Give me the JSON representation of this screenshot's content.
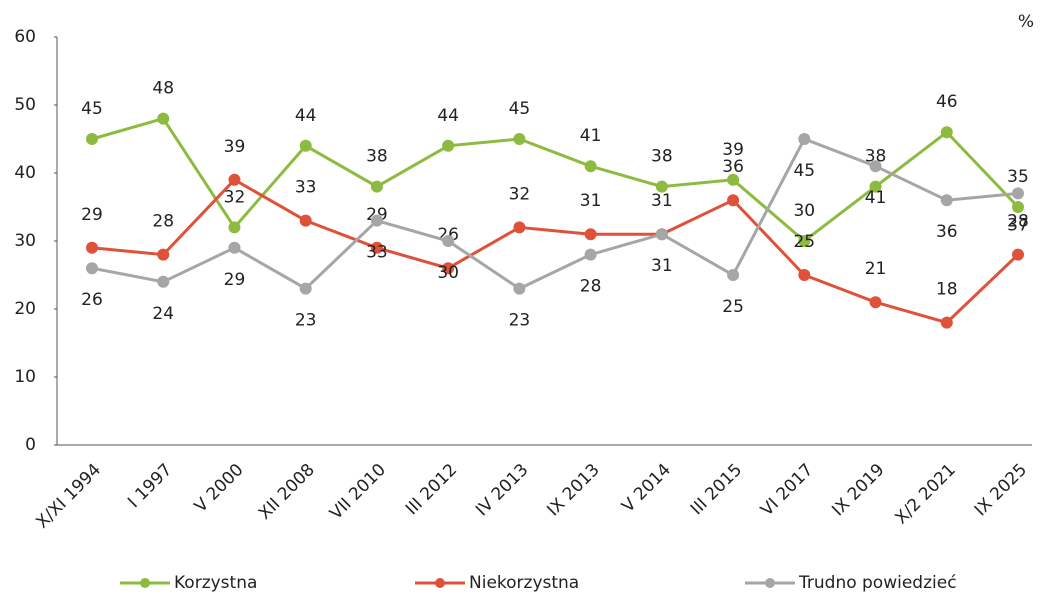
{
  "chart_data": {
    "type": "line",
    "unit_label": "%",
    "categories": [
      "X/XI 1994",
      "I 1997",
      "V 2000",
      "XII 2008",
      "VII 2010",
      "III 2012",
      "IV 2013",
      "IX 2013",
      "V 2014",
      "III 2015",
      "VI 2017",
      "IX 2019",
      "X/2 2021",
      "IX 2025"
    ],
    "series": [
      {
        "name": "Korzystna",
        "color": "#8dbb3f",
        "values": [
          45,
          48,
          32,
          44,
          38,
          44,
          45,
          41,
          38,
          39,
          30,
          38,
          46,
          35
        ]
      },
      {
        "name": "Niekorzystna",
        "color": "#e0513a",
        "values": [
          29,
          28,
          39,
          33,
          29,
          26,
          32,
          31,
          31,
          36,
          25,
          21,
          18,
          28
        ]
      },
      {
        "name": "Trudno powiedzieć",
        "color": "#a6a6a6",
        "values": [
          26,
          24,
          29,
          23,
          33,
          30,
          23,
          28,
          31,
          25,
          45,
          41,
          36,
          37
        ]
      }
    ],
    "ylim": [
      0,
      60
    ],
    "yticks": [
      0,
      10,
      20,
      30,
      40,
      50,
      60
    ],
    "legend": "bottom"
  }
}
